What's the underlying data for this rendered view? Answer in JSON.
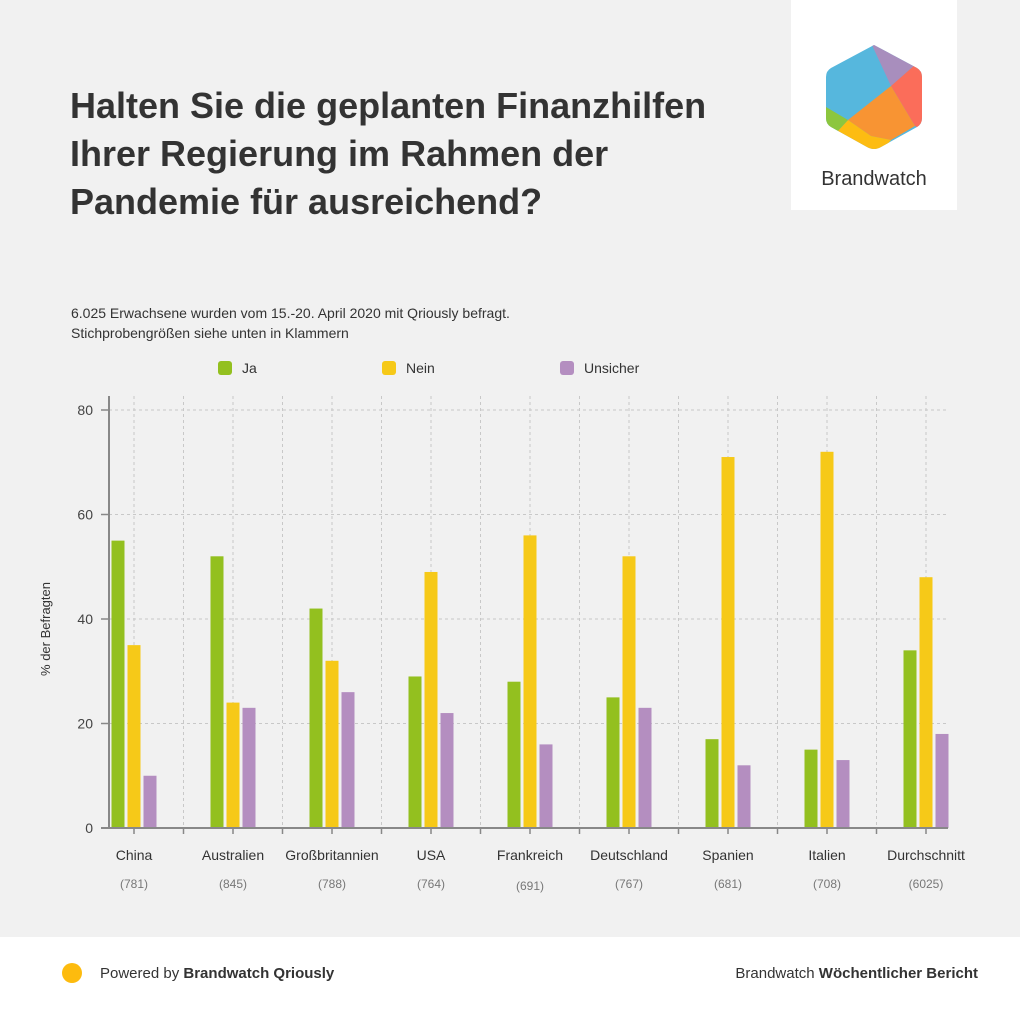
{
  "header": {
    "title": "Halten Sie die geplanten Finanzhilfen Ihrer Regierung im Rahmen der Pandemie für ausreichend?",
    "subtitle_line1": "6.025 Erwachsene wurden vom 15.-20. April 2020 mit Qriously befragt.",
    "subtitle_line2": "Stichprobengrößen siehe unten in Klammern"
  },
  "logo": {
    "text": "Brandwatch",
    "icon": "brandwatch-hexagon-logo"
  },
  "footer": {
    "powered_prefix": "Powered by ",
    "powered_brand": "Brandwatch Qriously",
    "report_prefix": "Brandwatch ",
    "report_name": "Wöchentlicher Bericht"
  },
  "colors": {
    "ja": "#93c01f",
    "nein": "#f6c918",
    "unsicher": "#b48ec0",
    "footer_dot": "#fdbb0e"
  },
  "chart_data": {
    "type": "bar",
    "title": "Halten Sie die geplanten Finanzhilfen Ihrer Regierung im Rahmen der Pandemie für ausreichend?",
    "xlabel": "",
    "ylabel": "% der Befragten",
    "ylim": [
      0,
      80
    ],
    "yticks": [
      0,
      20,
      40,
      60,
      80
    ],
    "grid": true,
    "legend_position": "top",
    "categories": [
      "China",
      "Australien",
      "Großbritannien",
      "USA",
      "Frankreich",
      "Deutschland",
      "Spanien",
      "Italien",
      "Durchschnitt"
    ],
    "sample_sizes": [
      "(781)",
      "(845)",
      "(788)",
      "(764)",
      "(691)",
      "(767)",
      "(681)",
      "(708)",
      "(6025)"
    ],
    "series": [
      {
        "name": "Ja",
        "color": "#93c01f",
        "values": [
          55,
          52,
          42,
          29,
          28,
          25,
          17,
          15,
          34
        ]
      },
      {
        "name": "Nein",
        "color": "#f6c918",
        "values": [
          35,
          24,
          32,
          49,
          56,
          52,
          71,
          72,
          48
        ]
      },
      {
        "name": "Unsicher",
        "color": "#b48ec0",
        "values": [
          10,
          23,
          26,
          22,
          16,
          23,
          12,
          13,
          18
        ]
      }
    ]
  }
}
